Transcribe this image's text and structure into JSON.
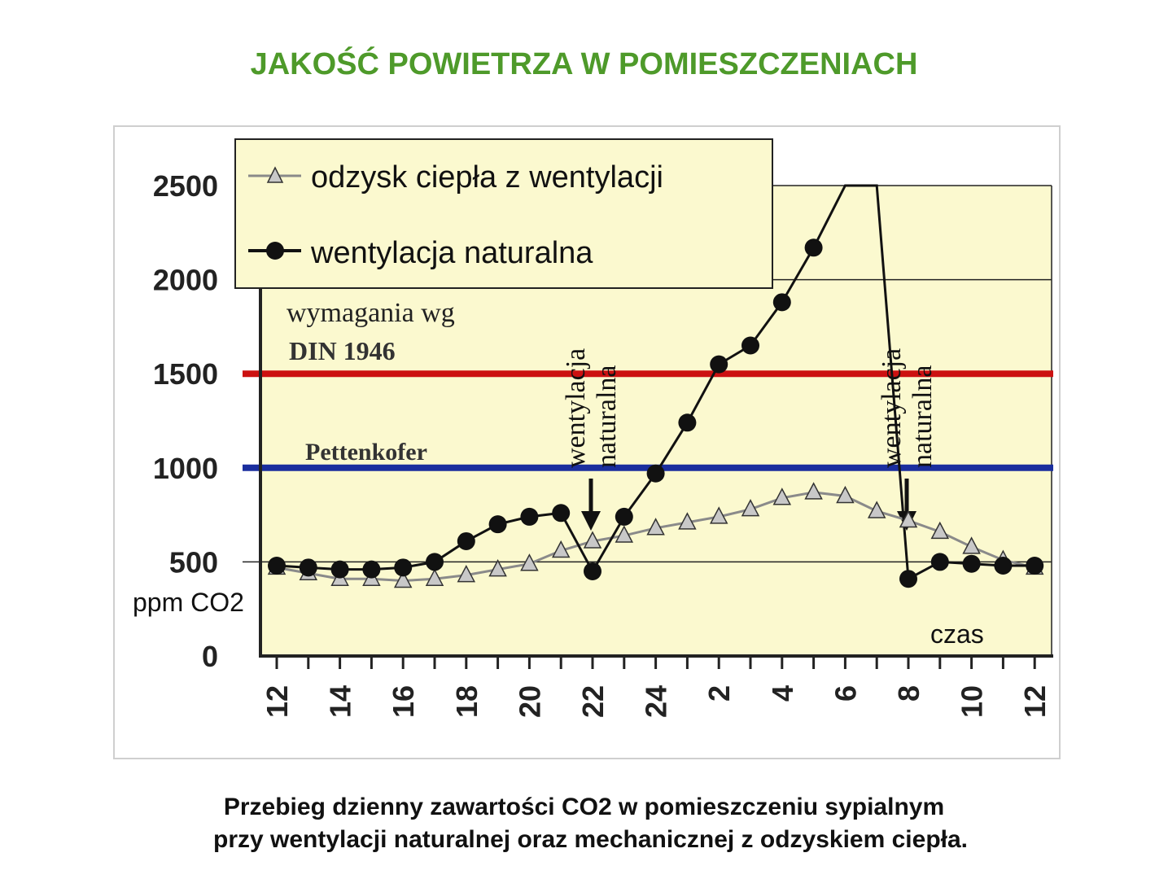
{
  "title": "JAKOŚĆ POWIETRZA W POMIESZCZENIACH",
  "caption": [
    "Przebieg dzienny zawartości CO2 w pomieszczeniu sypialnym",
    "przy wentylacji naturalnej oraz mechanicznej z odzyskiem ciepła."
  ],
  "colors": {
    "title": "#4e9a2a",
    "plot_background": "#fbf9cf",
    "din_line": "#cc1111",
    "pettenkofer_line": "#1a2e9e",
    "series_heat_recovery_marker": "#c8c8c8",
    "series_heat_recovery_line": "#8a8a8a",
    "series_natural": "#111111"
  },
  "chart_data": {
    "type": "line",
    "xlabel": "czas",
    "ylabel": "ppm CO2",
    "ylim": [
      0,
      2500
    ],
    "yticks": [
      0,
      500,
      1000,
      1500,
      2000,
      2500
    ],
    "xtick_labels": [
      "12",
      "14",
      "16",
      "18",
      "20",
      "22",
      "24",
      "2",
      "4",
      "6",
      "8",
      "10",
      "12"
    ],
    "x_hours": [
      12,
      13,
      14,
      15,
      16,
      17,
      18,
      19,
      20,
      21,
      22,
      23,
      24,
      25,
      26,
      27,
      28,
      29,
      30,
      31,
      32,
      33,
      34,
      35,
      36
    ],
    "legend_position": "top-left",
    "series": [
      {
        "name": "odzysk ciepła z wentylacji",
        "marker": "triangle",
        "values": [
          470,
          440,
          410,
          410,
          400,
          410,
          430,
          460,
          490,
          560,
          610,
          640,
          680,
          710,
          740,
          780,
          840,
          870,
          850,
          770,
          720,
          660,
          580,
          510,
          470
        ]
      },
      {
        "name": "wentylacja naturalna",
        "marker": "circle",
        "values": [
          480,
          470,
          460,
          460,
          470,
          500,
          610,
          700,
          740,
          760,
          450,
          740,
          970,
          1240,
          1550,
          1650,
          1880,
          2170,
          2600,
          2600,
          410,
          500,
          490,
          480,
          480
        ]
      }
    ],
    "reference_lines": [
      {
        "label": "wymagania wg",
        "label_bold": "DIN 1946",
        "value": 1500
      },
      {
        "label": "Pettenkofer",
        "value": 1000
      }
    ],
    "annotations": [
      {
        "text_line1": "wentylacja",
        "text_line2": "naturalna",
        "x_hour": 22
      },
      {
        "text_line1": "wentylacja",
        "text_line2": "naturalna",
        "x_hour": 32
      }
    ]
  }
}
